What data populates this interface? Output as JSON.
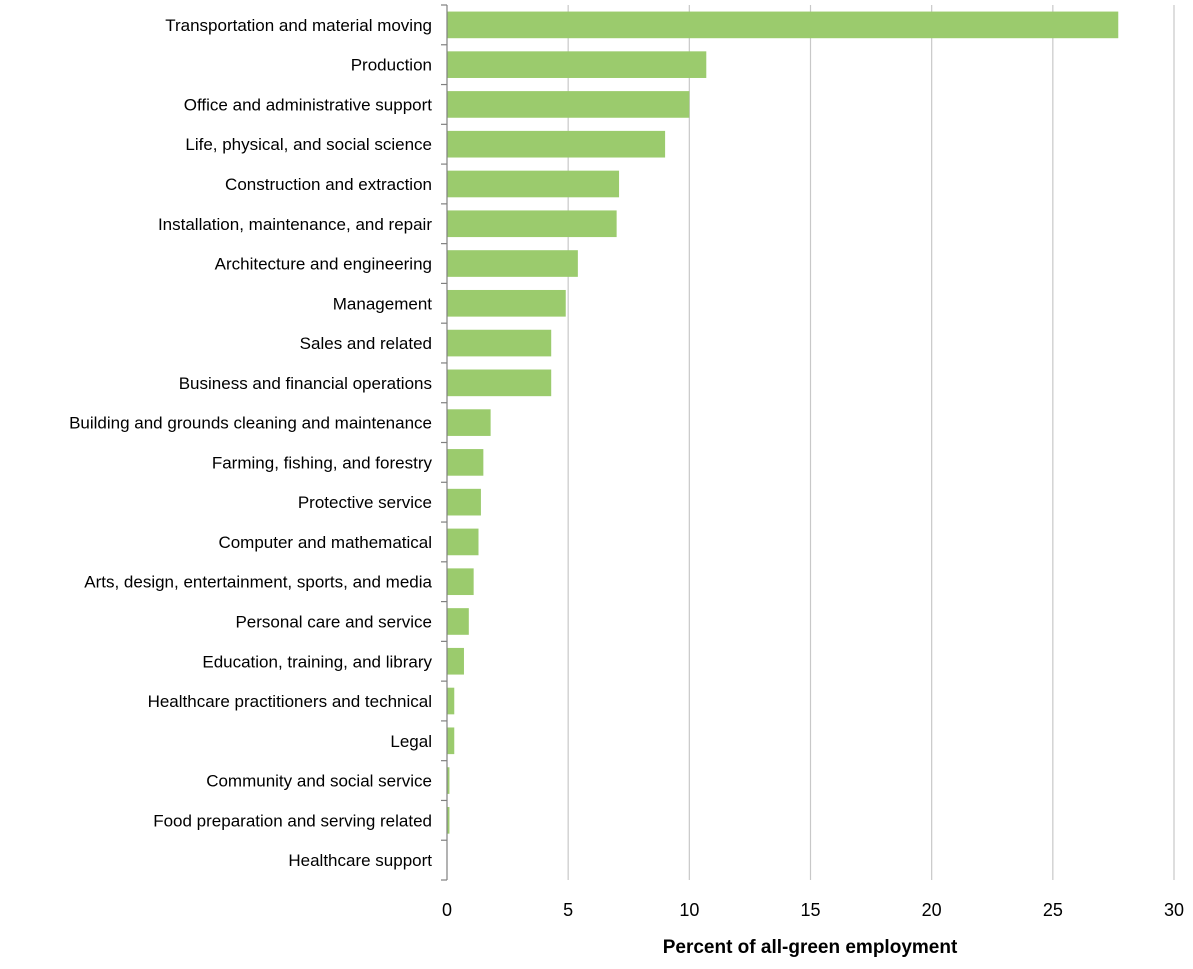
{
  "chart_data": {
    "type": "bar",
    "orientation": "horizontal",
    "title": "",
    "xlabel": "Percent of all-green employment",
    "ylabel": "",
    "xlim": [
      0,
      30
    ],
    "xticks": [
      0,
      5,
      10,
      15,
      20,
      25,
      30
    ],
    "grid": "vertical",
    "legend": "none",
    "bar_color": "#9BCB6D",
    "grid_color": "#C8C8C8",
    "axis_color": "#808080",
    "categories": [
      "Transportation and material moving",
      "Production",
      "Office and administrative support",
      "Life, physical, and social science",
      "Construction and extraction",
      "Installation, maintenance, and repair",
      "Architecture and engineering",
      "Management",
      "Sales and related",
      "Business and financial operations",
      "Building and grounds cleaning and maintenance",
      "Farming, fishing, and forestry",
      "Protective service",
      "Computer and mathematical",
      "Arts, design, entertainment, sports, and media",
      "Personal care and service",
      "Education, training, and library",
      "Healthcare practitioners and technical",
      "Legal",
      "Community and social service",
      "Food preparation and serving related",
      "Healthcare support"
    ],
    "values": [
      27.7,
      10.7,
      10.0,
      9.0,
      7.1,
      7.0,
      5.4,
      4.9,
      4.3,
      4.3,
      1.8,
      1.5,
      1.4,
      1.3,
      1.1,
      0.9,
      0.7,
      0.3,
      0.3,
      0.1,
      0.1,
      0.0
    ]
  }
}
